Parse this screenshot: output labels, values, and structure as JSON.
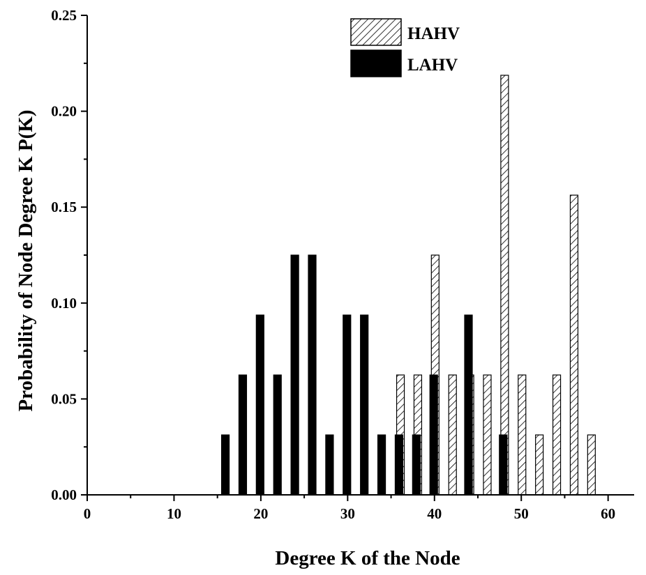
{
  "chart_data": {
    "type": "bar",
    "xlabel": "Degree K of the Node",
    "ylabel": "Probability of Node Degree K P(K)",
    "xlim": [
      0,
      63
    ],
    "ylim": [
      0,
      0.25
    ],
    "x_ticks": [
      "0",
      "10",
      "20",
      "30",
      "40",
      "50",
      "60"
    ],
    "y_ticks": [
      "0.00",
      "0.05",
      "0.10",
      "0.15",
      "0.20",
      "0.25"
    ],
    "legend_position": "top-right",
    "grid": false,
    "series": [
      {
        "name": "HAHV",
        "pattern": "hatched",
        "color": "#000000",
        "x": [
          36,
          38,
          40,
          42,
          44,
          46,
          48,
          50,
          52,
          54,
          56,
          58
        ],
        "values": [
          0.0625,
          0.0625,
          0.125,
          0.0625,
          0.0625,
          0.0625,
          0.21875,
          0.0625,
          0.03125,
          0.0625,
          0.15625,
          0.03125
        ]
      },
      {
        "name": "LAHV",
        "pattern": "solid",
        "color": "#000000",
        "x": [
          16,
          18,
          20,
          22,
          24,
          26,
          28,
          30,
          32,
          34,
          36,
          38,
          40,
          44,
          48
        ],
        "values": [
          0.03125,
          0.0625,
          0.09375,
          0.0625,
          0.125,
          0.125,
          0.03125,
          0.09375,
          0.09375,
          0.03125,
          0.03125,
          0.03125,
          0.0625,
          0.09375,
          0.03125
        ]
      }
    ]
  }
}
